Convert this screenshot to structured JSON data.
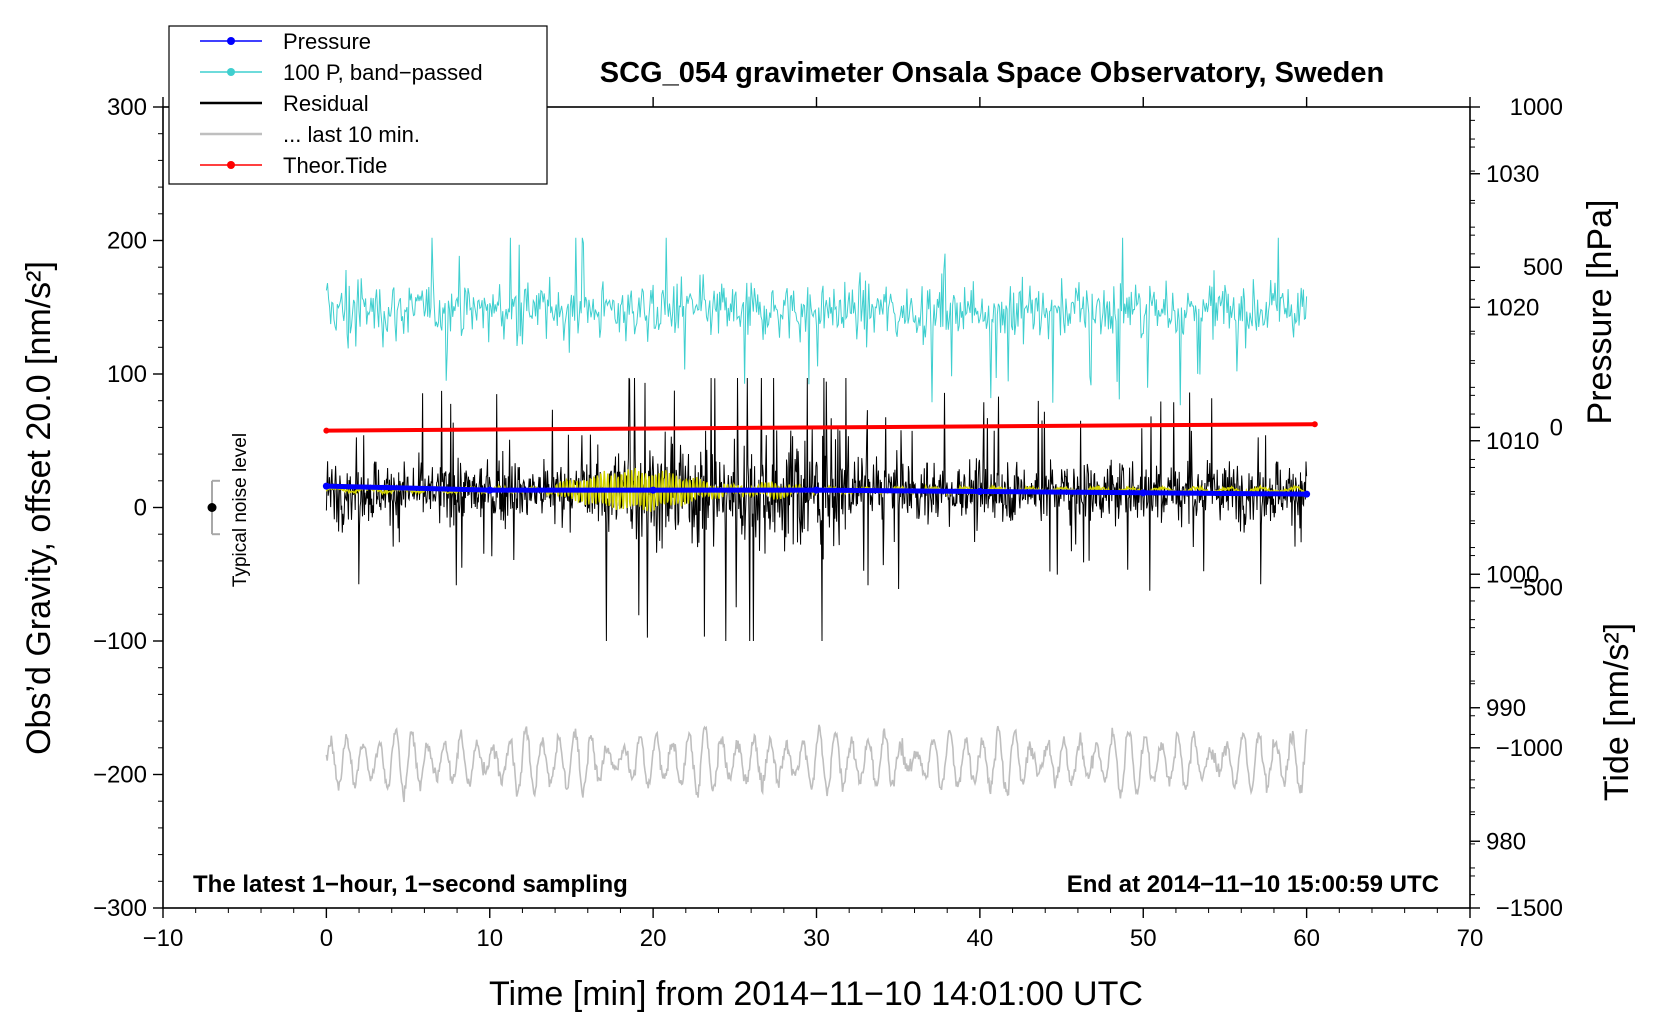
{
  "chart_data": {
    "type": "line",
    "title": "SCG_054 gravimeter Onsala Space Observatory, Sweden",
    "xlabel": "Time [min] from 2014−11−10 14:01:00 UTC",
    "ylabel_left": "Obs’d Gravity, offset 20.0 [nm/s²]",
    "ylabel_right_top": "Pressure [hPa]",
    "ylabel_right_bottom": "Tide [nm/s²]",
    "xlim": [
      -10,
      70
    ],
    "ylim": [
      -300,
      300
    ],
    "pressure_axis_range": [
      975,
      1035
    ],
    "tide_axis_range": [
      -1500,
      1000
    ],
    "x_ticks": [
      "−10",
      "0",
      "10",
      "20",
      "30",
      "40",
      "50",
      "60",
      "70"
    ],
    "y_ticks": [
      "300",
      "200",
      "100",
      "0",
      "−100",
      "−200",
      "−300"
    ],
    "pressure_ticks": [
      "1030",
      "1020",
      "1010",
      "1000",
      "990",
      "980"
    ],
    "tide_ticks": [
      "1000",
      "500",
      "0",
      "−500",
      "−1000",
      "−1500"
    ],
    "footer_left": "The latest 1−hour, 1−second sampling",
    "footer_right": "End at 2014−11−10 15:00:59 UTC",
    "noise_label": "Typical noise level",
    "noise_level": {
      "x": -7,
      "center": 0,
      "half_range": 20
    },
    "legend": [
      {
        "label": "Pressure",
        "color": "#0000ff",
        "marker": true
      },
      {
        "label": "100 P, band−passed",
        "color": "#3fcfcf",
        "marker": true
      },
      {
        "label": "Residual",
        "color": "#000000",
        "marker": false
      },
      {
        "label": "... last 10 min.",
        "color": "#bfbfbf",
        "marker": false
      },
      {
        "label": "Theor.Tide",
        "color": "#ff0000",
        "marker": true
      }
    ],
    "series": [
      {
        "name": "Pressure",
        "color": "#0000ff",
        "axis": "pressure",
        "x": [
          0,
          10,
          20,
          30,
          40,
          50,
          60
        ],
        "values": [
          1006.6,
          1006.3,
          1006.3,
          1006.3,
          1006.2,
          1006.1,
          1006.0
        ]
      },
      {
        "name": "100 P, band−passed",
        "color": "#3fcfcf",
        "axis": "gravity",
        "x_range": [
          0,
          60
        ],
        "center": 148,
        "spread": 20,
        "min": 70,
        "max": 202
      },
      {
        "name": "Residual",
        "color": "#000000",
        "axis": "gravity",
        "x_range": [
          0,
          60
        ],
        "center": 12,
        "spread": 20,
        "min": -100,
        "max": 97
      },
      {
        "name": "Residual (smoothed)",
        "color": "#d4d400",
        "axis": "gravity",
        "x_range": [
          0,
          60
        ],
        "center": 13,
        "spread": 3,
        "burst_x": [
          14,
          29
        ],
        "burst_amp": 15
      },
      {
        "name": "... last 10 min.",
        "color": "#bfbfbf",
        "axis": "gravity",
        "x_range": [
          0,
          60
        ],
        "center": -190,
        "spread": 15,
        "min": -226,
        "max": -143
      },
      {
        "name": "Theor.Tide",
        "color": "#ff0000",
        "axis": "tide",
        "x": [
          0,
          60.5
        ],
        "values": [
          -10,
          10
        ]
      }
    ]
  }
}
